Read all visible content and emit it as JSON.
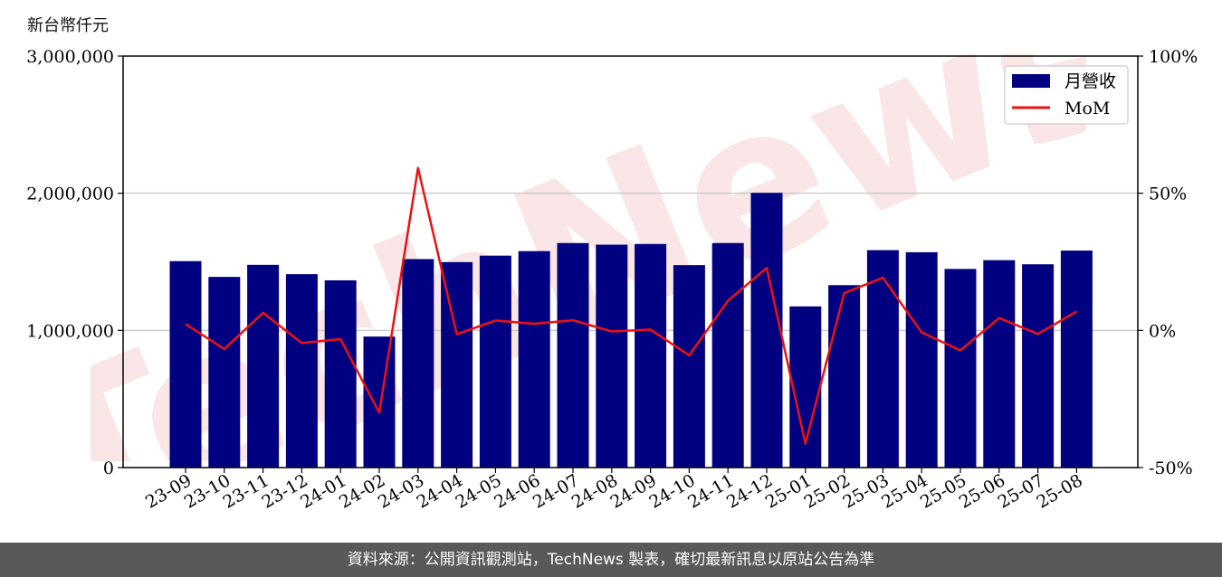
{
  "unit_label": "新台幣仟元",
  "footer_text": "資料來源：公開資訊觀測站，TechNews 製表，確切最新訊息以原站公告為準",
  "watermark_text": "TechNews",
  "colors": {
    "bar": "#000080",
    "line": "#ee1111",
    "grid": "#cccccc",
    "footer_bg": "#595959",
    "watermark": "#f6d3d3"
  },
  "chart_data": {
    "type": "bar",
    "categories": [
      "23-09",
      "23-10",
      "23-11",
      "23-12",
      "24-01",
      "24-02",
      "24-03",
      "24-04",
      "24-05",
      "24-06",
      "24-07",
      "24-08",
      "24-09",
      "24-10",
      "24-11",
      "24-12",
      "25-01",
      "25-02",
      "25-03",
      "25-04",
      "25-05",
      "25-06",
      "25-07",
      "25-08"
    ],
    "series": [
      {
        "name": "月營收",
        "type": "bar",
        "axis": "left",
        "values": [
          1505000,
          1390000,
          1478000,
          1410000,
          1365000,
          955000,
          1520000,
          1498000,
          1545000,
          1578000,
          1637000,
          1625000,
          1630000,
          1476000,
          1637000,
          2003000,
          1175000,
          1330000,
          1585000,
          1570000,
          1448000,
          1512000,
          1482000,
          1582000
        ]
      },
      {
        "name": "MoM",
        "type": "line",
        "axis": "right",
        "values": [
          2.3,
          -6.8,
          6.4,
          -4.6,
          -3.2,
          -30.0,
          59.2,
          -1.4,
          3.6,
          2.4,
          3.7,
          -0.4,
          0.3,
          -9.1,
          10.8,
          22.8,
          -41.3,
          13.6,
          19.2,
          -0.7,
          -7.3,
          4.5,
          -1.3,
          6.9
        ]
      }
    ],
    "ylim": [
      0,
      3000000
    ],
    "yticks": [
      "0",
      "1,000,000",
      "2,000,000",
      "3,000,000"
    ],
    "ylim_right": [
      -50,
      100
    ],
    "yticks_right": [
      "-50%",
      "0%",
      "50%",
      "100%"
    ],
    "legend_position": "upper-right",
    "grid": "horizontal"
  }
}
